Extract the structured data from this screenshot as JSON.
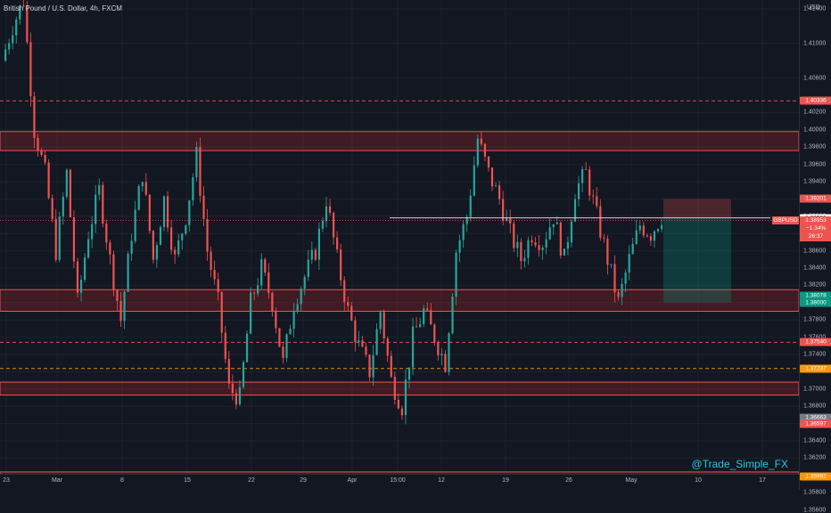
{
  "header": {
    "title": "British Pound / U.S. Dollar, 4h, FXCM"
  },
  "watermark": "@Trade_Simple_FX",
  "price_axis": {
    "currency": "USD",
    "ticks": [
      "1.41400",
      "1.41000",
      "1.40600",
      "1.40200",
      "1.40000",
      "1.39800",
      "1.39600",
      "1.39400",
      "1.39200",
      "1.39000",
      "1.38800",
      "1.38600",
      "1.38400",
      "1.38200",
      "1.38000",
      "1.37800",
      "1.37600",
      "1.37400",
      "1.37200",
      "1.37000",
      "1.36800",
      "1.36600",
      "1.36400",
      "1.36200",
      "1.36000",
      "1.35800",
      "1.35600"
    ]
  },
  "time_axis": {
    "labels": [
      "23",
      "Mar",
      "8",
      "15",
      "22",
      "29",
      "Apr",
      "15:00",
      "12",
      "19",
      "26",
      "May",
      "10",
      "17"
    ]
  },
  "levels": [
    {
      "label": "1.40336",
      "price": 1.40336,
      "color": "#ef5350",
      "style": "dashed"
    },
    {
      "label": "1.39201",
      "price": 1.39201,
      "color": "#ef5350",
      "style": "solid"
    },
    {
      "label": "1.38981",
      "price": 1.38981,
      "color": "#d1d4dc",
      "style": "dotted"
    },
    {
      "label": "1.38078",
      "price": 1.38078,
      "color": "#089981",
      "style": "solid"
    },
    {
      "label": "1.38000",
      "price": 1.38,
      "color": "#089981",
      "style": "solid"
    },
    {
      "label": "1.37540",
      "price": 1.3754,
      "color": "#ef5350",
      "style": "dashed"
    },
    {
      "label": "1.37237",
      "price": 1.37237,
      "color": "#ff9800",
      "style": "dashed"
    },
    {
      "label": "1.36663",
      "price": 1.36663,
      "color": "#787b86",
      "style": "solid"
    },
    {
      "label": "1.36597",
      "price": 1.36597,
      "color": "#ef5350",
      "style": "solid"
    },
    {
      "label": "1.35992",
      "price": 1.35992,
      "color": "#ff9800",
      "style": "dashed"
    }
  ],
  "live": {
    "symbol": "GBPUSD",
    "price": "1.38953",
    "change": "−1.34%",
    "countdown": "26:37",
    "value": 1.38953
  },
  "zones": [
    {
      "top": 1.3998,
      "bottom": 1.3976
    },
    {
      "top": 1.3815,
      "bottom": 1.379
    },
    {
      "top": 1.3708,
      "bottom": 1.3693
    },
    {
      "top": 1.3604,
      "bottom": 1.3594
    }
  ],
  "position": {
    "entry": 1.38981,
    "stop": 1.39201,
    "target": 1.38
  },
  "colors": {
    "up": "#26a69a",
    "down": "#ef5350",
    "background": "#131722",
    "zone": "rgba(178,40,40,0.28)",
    "profit": "rgba(8,153,129,0.28)",
    "loss": "rgba(239,83,80,0.25)"
  },
  "chart_data": {
    "type": "candlestick",
    "symbol": "GBPUSD",
    "timeframe": "4h",
    "close_path": [
      [
        0,
        1.408
      ],
      [
        1,
        1.412
      ],
      [
        2,
        1.415
      ],
      [
        3,
        1.4
      ],
      [
        4,
        1.395
      ],
      [
        5,
        1.386
      ],
      [
        6,
        1.395
      ],
      [
        7,
        1.38
      ],
      [
        8,
        1.388
      ],
      [
        9,
        1.393
      ],
      [
        10,
        1.385
      ],
      [
        11,
        1.378
      ],
      [
        12,
        1.388
      ],
      [
        13,
        1.395
      ],
      [
        14,
        1.385
      ],
      [
        15,
        1.392
      ],
      [
        16,
        1.385
      ],
      [
        17,
        1.39
      ],
      [
        18,
        1.397
      ],
      [
        19,
        1.386
      ],
      [
        20,
        1.38
      ],
      [
        21,
        1.37
      ],
      [
        22,
        1.369
      ],
      [
        23,
        1.38
      ],
      [
        24,
        1.384
      ],
      [
        25,
        1.38
      ],
      [
        26,
        1.373
      ],
      [
        27,
        1.38
      ],
      [
        28,
        1.383
      ],
      [
        29,
        1.386
      ],
      [
        30,
        1.392
      ],
      [
        31,
        1.385
      ],
      [
        32,
        1.379
      ],
      [
        33,
        1.375
      ],
      [
        34,
        1.372
      ],
      [
        35,
        1.379
      ],
      [
        36,
        1.371
      ],
      [
        37,
        1.368
      ],
      [
        38,
        1.376
      ],
      [
        39,
        1.379
      ],
      [
        40,
        1.376
      ],
      [
        41,
        1.373
      ],
      [
        42,
        1.386
      ],
      [
        43,
        1.39
      ],
      [
        44,
        1.399
      ],
      [
        45,
        1.395
      ],
      [
        46,
        1.392
      ],
      [
        47,
        1.388
      ],
      [
        48,
        1.385
      ],
      [
        49,
        1.388
      ],
      [
        50,
        1.387
      ],
      [
        51,
        1.39
      ],
      [
        52,
        1.385
      ],
      [
        53,
        1.393
      ],
      [
        54,
        1.395
      ],
      [
        55,
        1.39
      ],
      [
        56,
        1.385
      ],
      [
        57,
        1.38
      ],
      [
        58,
        1.385
      ],
      [
        59,
        1.389
      ],
      [
        60,
        1.388
      ],
      [
        61,
        1.39
      ]
    ]
  }
}
